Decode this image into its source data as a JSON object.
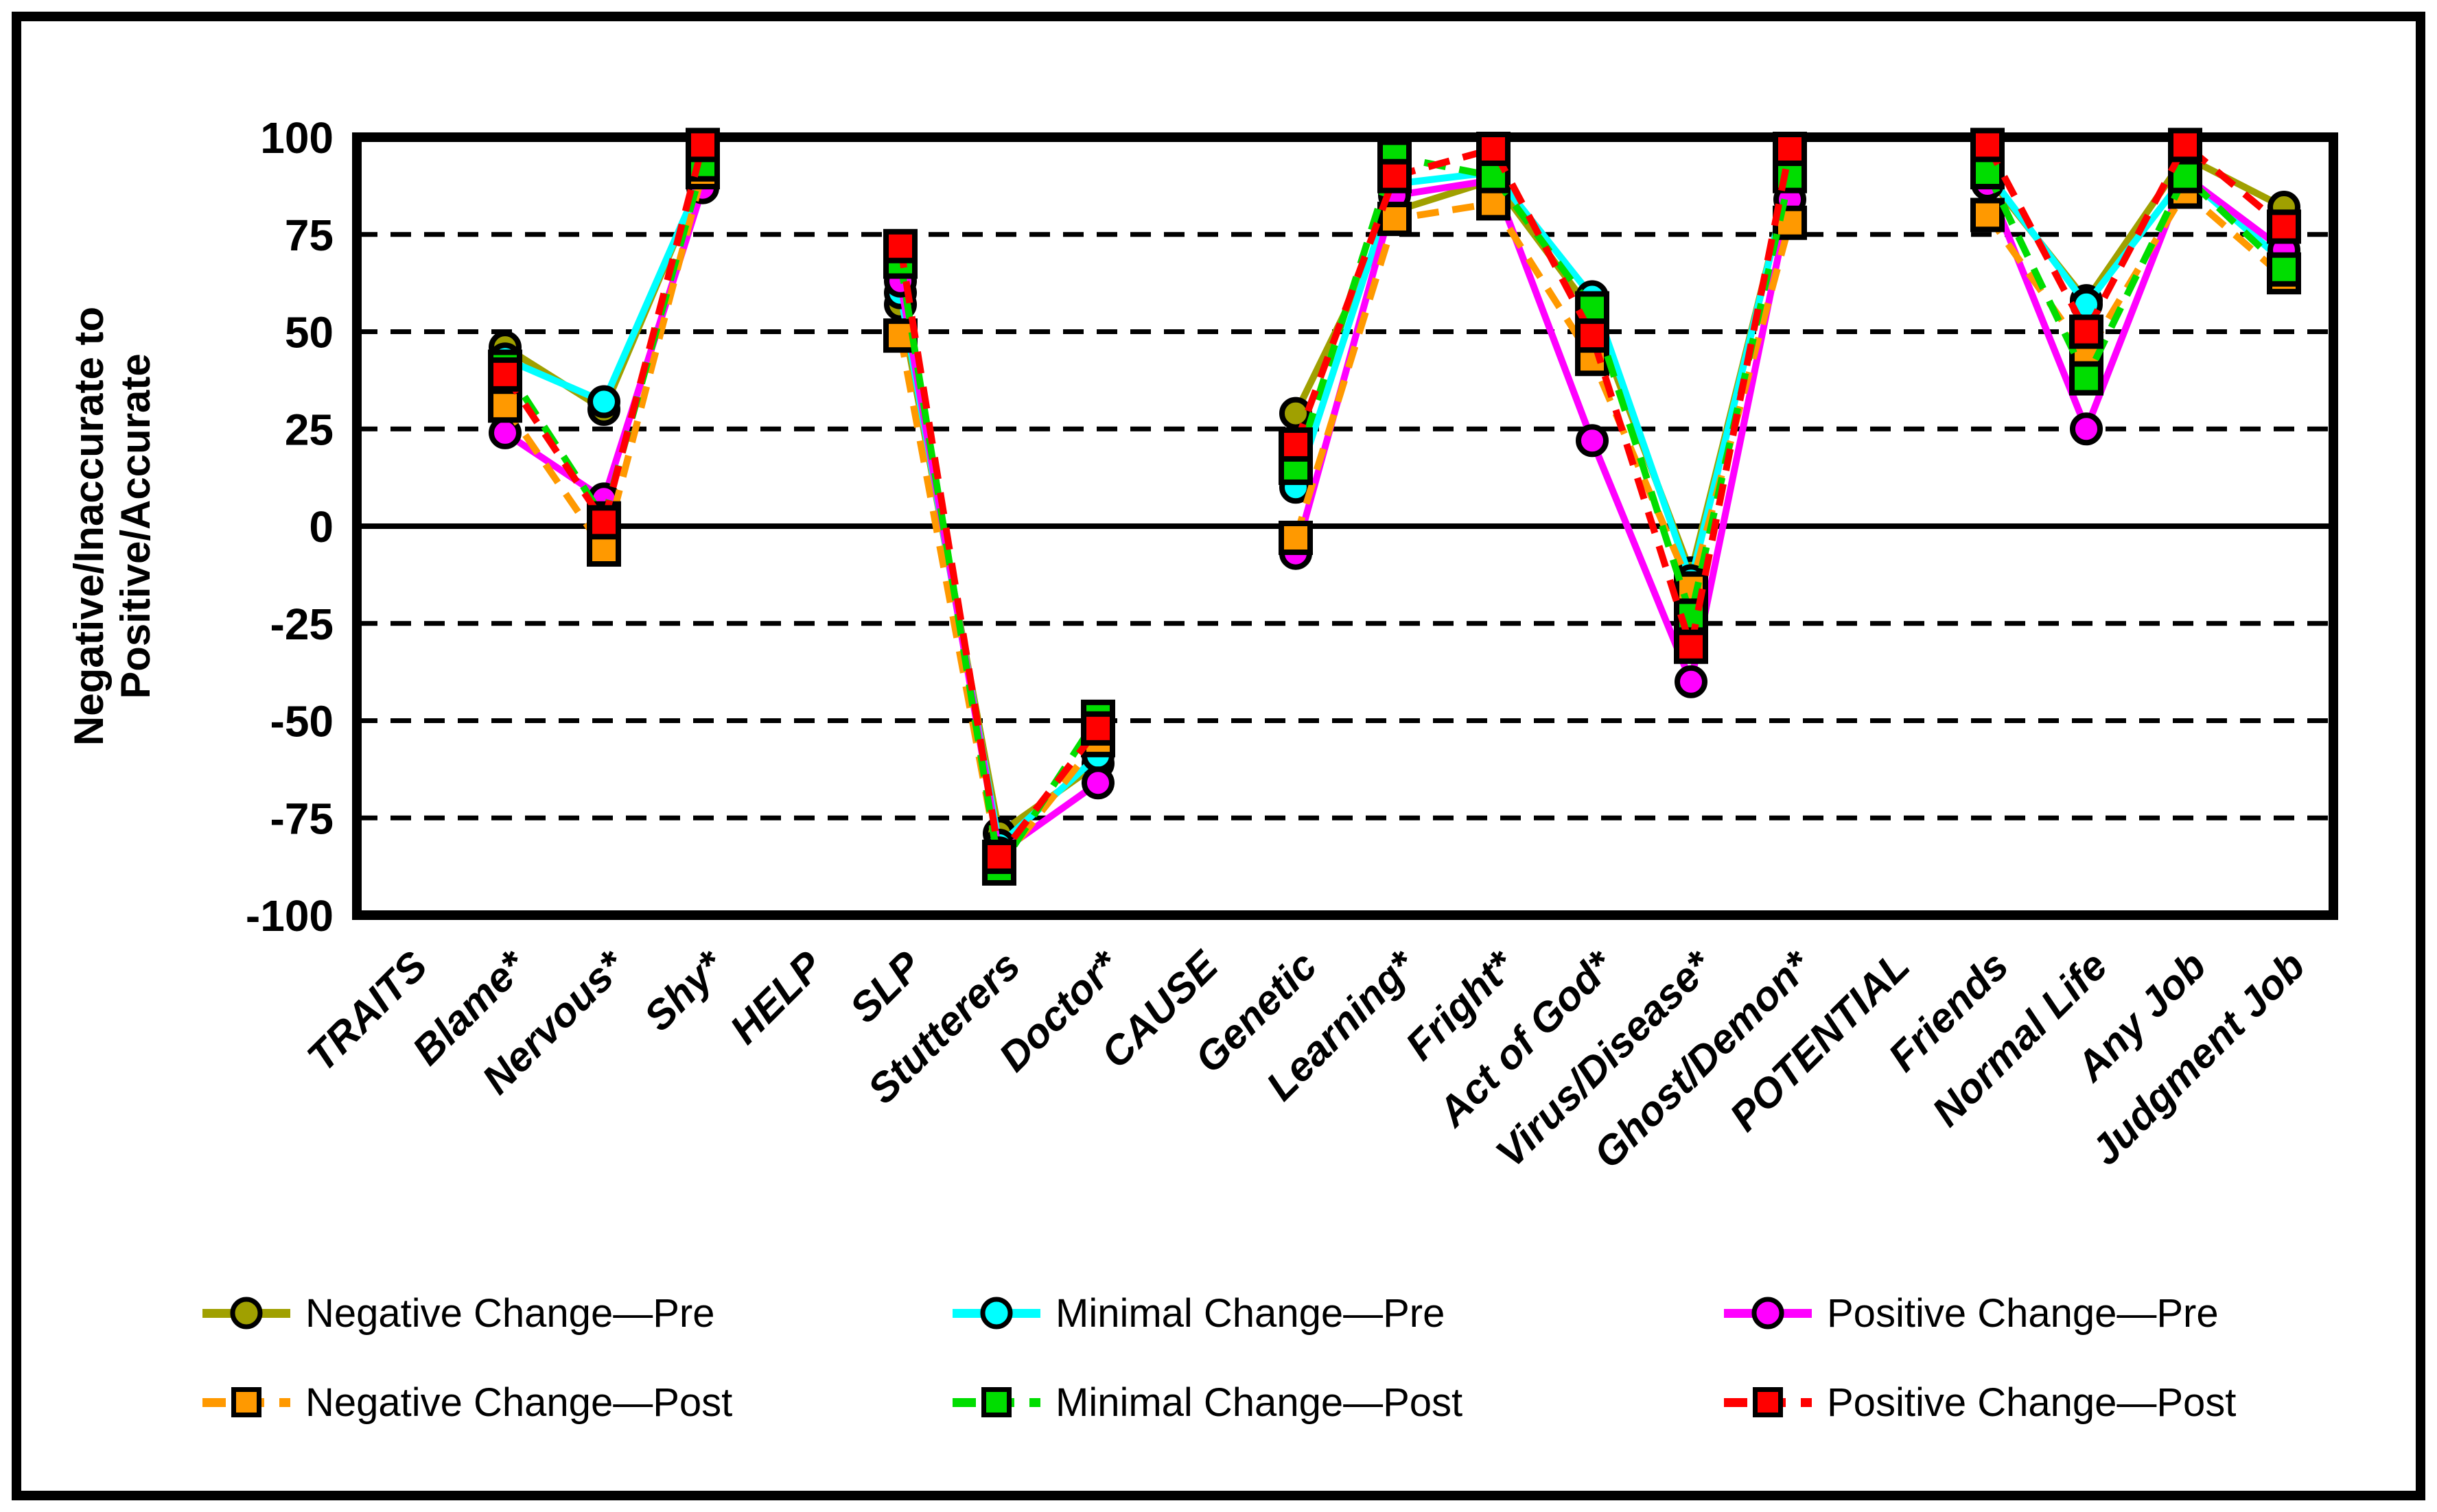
{
  "figure": {
    "background_color": "#FFFFFF",
    "border_color": "#000000"
  },
  "y_axis": {
    "title": "Negative/Inaccurate to Positive/Accurate",
    "title_line1": "Negative/Inaccurate to",
    "title_line2": "Positive/Accurate",
    "min": -100,
    "max": 100,
    "tick_step": 25,
    "ticks": [
      100,
      75,
      50,
      25,
      0,
      -25,
      -50,
      -75,
      -100
    ]
  },
  "chart_data": {
    "type": "line",
    "title": "",
    "xlabel": "",
    "ylabel": "Negative/Inaccurate to Positive/Accurate",
    "ylim": [
      -100,
      100
    ],
    "grid": "horizontal dashed every 25, solid at 0",
    "legend_position": "bottom, 3 columns x 2 rows",
    "categories": [
      "TRAITS",
      "Blame*",
      "Nervous*",
      "Shy*",
      "HELP",
      "SLP",
      "Stutterers",
      "Doctor*",
      "CAUSE",
      "Genetic",
      "Learning*",
      "Fright*",
      "Act of God*",
      "Virus/Disease*",
      "Ghost/Demon*",
      "POTENTIAL",
      "Friends",
      "Normal Life",
      "Any Job",
      "Judgment Job"
    ],
    "series": [
      {
        "name": "Negative Change—Pre",
        "color": "#A0A000",
        "marker": "circle",
        "line_style": "solid",
        "values": [
          null,
          46,
          30,
          90,
          null,
          57,
          -79,
          -61,
          null,
          29,
          81,
          89,
          55,
          -12,
          90,
          null,
          90,
          58,
          95,
          82
        ]
      },
      {
        "name": "Minimal Change—Pre",
        "color": "#00FFFF",
        "marker": "circle",
        "line_style": "solid",
        "values": [
          null,
          43,
          32,
          90,
          null,
          60,
          -82,
          -59,
          null,
          10,
          88,
          91,
          59,
          -14,
          90,
          null,
          91,
          57,
          90,
          68
        ]
      },
      {
        "name": "Positive Change—Pre",
        "color": "#FF00FF",
        "marker": "circle",
        "line_style": "solid",
        "values": [
          null,
          24,
          7,
          87,
          null,
          63,
          -84,
          -66,
          null,
          -7,
          85,
          89,
          22,
          -40,
          84,
          null,
          88,
          25,
          90,
          71
        ]
      },
      {
        "name": "Negative Change—Post",
        "color": "#FF9900",
        "marker": "square",
        "line_style": "dashed",
        "values": [
          null,
          31,
          -6,
          91,
          null,
          49,
          -87,
          -55,
          null,
          -3,
          79,
          83,
          43,
          -16,
          78,
          null,
          80,
          44,
          86,
          64
        ]
      },
      {
        "name": "Minimal Change—Post",
        "color": "#00DD00",
        "marker": "square",
        "line_style": "dashed",
        "values": [
          null,
          41,
          2,
          93,
          null,
          68,
          -88,
          -49,
          null,
          15,
          95,
          90,
          56,
          -23,
          90,
          null,
          91,
          38,
          90,
          66
        ]
      },
      {
        "name": "Positive Change—Post",
        "color": "#FF0000",
        "marker": "square",
        "line_style": "dashed",
        "values": [
          null,
          39,
          1,
          98,
          null,
          72,
          -85,
          -52,
          null,
          21,
          90,
          97,
          49,
          -31,
          97,
          null,
          98,
          50,
          98,
          77
        ]
      }
    ]
  },
  "legend": {
    "rows": [
      [
        "Negative Change—Pre",
        "Minimal Change—Pre",
        "Positive Change—Pre"
      ],
      [
        "Negative Change—Post",
        "Minimal Change—Post",
        "Positive Change—Post"
      ]
    ]
  }
}
